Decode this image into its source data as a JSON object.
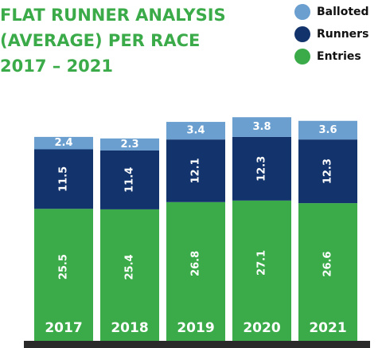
{
  "chart_data": {
    "type": "stacked_bar",
    "title": [
      "FLAT RUNNER ANALYSIS",
      "(AVERAGE) PER RACE",
      "2017 – 2021"
    ],
    "categories": [
      "2017",
      "2018",
      "2019",
      "2020",
      "2021"
    ],
    "series": [
      {
        "name": "Entries",
        "color": "#3bab4a",
        "values": [
          25.5,
          25.4,
          26.8,
          27.1,
          26.6
        ]
      },
      {
        "name": "Runners",
        "color": "#12336b",
        "values": [
          11.5,
          11.4,
          12.1,
          12.3,
          12.3
        ]
      },
      {
        "name": "Balloted",
        "color": "#6a9fd0",
        "values": [
          2.4,
          2.3,
          3.4,
          3.8,
          3.6
        ]
      }
    ],
    "legend_order": [
      "Balloted",
      "Runners",
      "Entries"
    ]
  }
}
